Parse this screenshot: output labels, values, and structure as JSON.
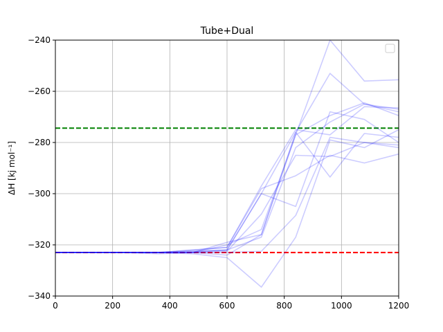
{
  "chart_data": {
    "type": "line",
    "title": "Tube+Dual",
    "xlabel": "",
    "ylabel": "ΔH [kj mol⁻¹]",
    "xlim": [
      0,
      1200
    ],
    "ylim": [
      -340,
      -240
    ],
    "xticks": [
      0,
      200,
      400,
      600,
      800,
      1000,
      1200
    ],
    "yticks": [
      -340,
      -320,
      -300,
      -280,
      -260,
      -240
    ],
    "xtick_labels": [
      "0",
      "200",
      "400",
      "600",
      "800",
      "1000",
      "1200"
    ],
    "ytick_labels": [
      "−340",
      "−320",
      "−300",
      "−280",
      "−260",
      "−240"
    ],
    "grid": true,
    "legend": "top-right (empty)",
    "series_color": "#0000ff",
    "series_alpha": 0.2,
    "reference_lines": [
      {
        "y": -274.4,
        "color": "#008000",
        "style": "dashed"
      },
      {
        "y": -323.0,
        "color": "#ff0000",
        "style": "dashed"
      }
    ],
    "series": [
      {
        "x": [
          0,
          120,
          240,
          360,
          480,
          600,
          720,
          840,
          960,
          1080,
          1200
        ],
        "y": [
          -323,
          -323,
          -323,
          -323,
          -322.5,
          -322,
          -300,
          -276,
          -253,
          -265,
          -267
        ]
      },
      {
        "x": [
          0,
          120,
          240,
          360,
          480,
          600,
          720,
          840,
          960,
          1080,
          1200
        ],
        "y": [
          -323,
          -323,
          -323,
          -323,
          -322,
          -321,
          -298,
          -293,
          -285,
          -288,
          -284.5
        ]
      },
      {
        "x": [
          0,
          120,
          240,
          360,
          480,
          600,
          720,
          840,
          960,
          1080,
          1200
        ],
        "y": [
          -323,
          -323,
          -323,
          -323,
          -323,
          -322.5,
          -308,
          -285,
          -285.5,
          -280,
          -282
        ]
      },
      {
        "x": [
          0,
          120,
          240,
          360,
          480,
          600,
          720,
          840,
          960,
          1080,
          1200
        ],
        "y": [
          -323,
          -323,
          -323,
          -323,
          -323,
          -319,
          -316,
          -276,
          -293.5,
          -276.5,
          -278
        ]
      },
      {
        "x": [
          0,
          120,
          240,
          360,
          480,
          600,
          720,
          840,
          960,
          1080,
          1200
        ],
        "y": [
          -323,
          -323,
          -323,
          -323.5,
          -323,
          -320,
          -314,
          -277,
          -240,
          -256,
          -255.5
        ]
      },
      {
        "x": [
          0,
          120,
          240,
          360,
          480,
          600,
          720,
          840,
          960,
          1080,
          1200
        ],
        "y": [
          -323,
          -323,
          -323,
          -323,
          -323,
          -322,
          -317,
          -282,
          -272,
          -265,
          -268
        ]
      },
      {
        "x": [
          0,
          120,
          240,
          360,
          480,
          600,
          720,
          840,
          960,
          1080,
          1200
        ],
        "y": [
          -323,
          -323,
          -323,
          -323,
          -323.5,
          -325,
          -336.5,
          -317,
          -279,
          -282,
          -275
        ]
      },
      {
        "x": [
          0,
          120,
          240,
          360,
          480,
          600,
          720,
          840,
          960,
          1080,
          1200
        ],
        "y": [
          -323,
          -323,
          -323,
          -323,
          -322.5,
          -322,
          -300,
          -305,
          -268,
          -271,
          -280
        ]
      },
      {
        "x": [
          0,
          120,
          240,
          360,
          480,
          600,
          720,
          840,
          960,
          1080,
          1200
        ],
        "y": [
          -323,
          -323,
          -323,
          -323,
          -322,
          -321,
          -297,
          -275,
          -277,
          -266,
          -266.5
        ]
      },
      {
        "x": [
          0,
          120,
          240,
          360,
          480,
          600,
          720,
          840,
          960,
          1080,
          1200
        ],
        "y": [
          -323,
          -323,
          -323,
          -323,
          -323,
          -323,
          -322.5,
          -308.5,
          -278,
          -280,
          -281
        ]
      },
      {
        "x": [
          0,
          120,
          240,
          360,
          480,
          600,
          720,
          840,
          960,
          1080,
          1200
        ],
        "y": [
          -323,
          -323,
          -323,
          -323,
          -323,
          -324,
          -316,
          -277,
          -269.5,
          -264.5,
          -269.5
        ]
      }
    ]
  }
}
